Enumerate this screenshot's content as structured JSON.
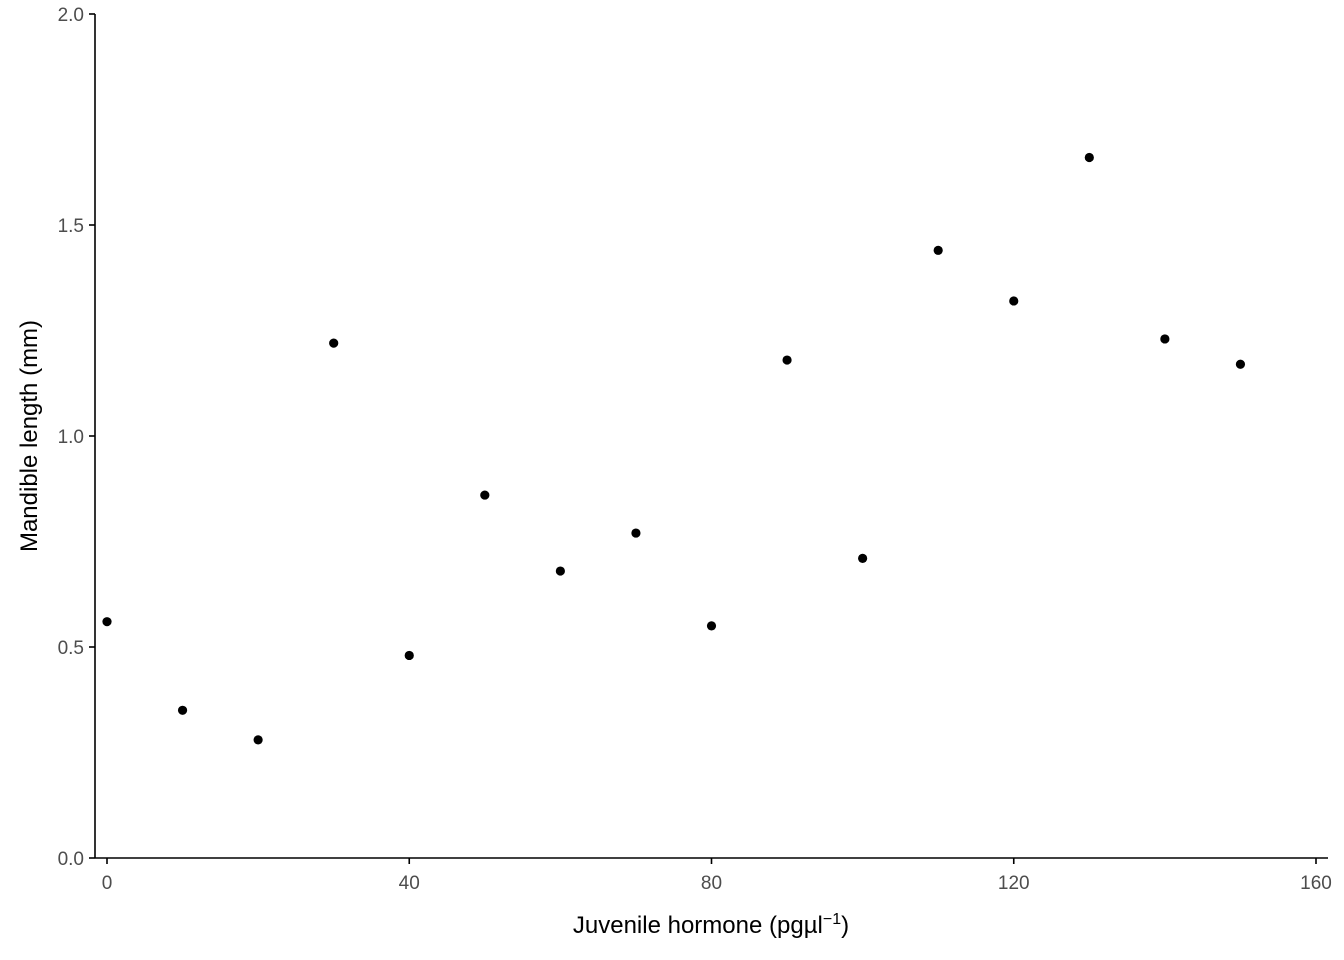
{
  "chart_data": {
    "type": "scatter",
    "title": "",
    "xlabel": "Juvenile hormone (pgµl",
    "xlabel_superscript": "−1",
    "xlabel_close": ")",
    "ylabel": "Mandible length (mm)",
    "xlim": [
      0,
      160
    ],
    "ylim": [
      0,
      2
    ],
    "xticks": [
      0,
      40,
      80,
      120,
      160
    ],
    "xtick_labels": [
      "0",
      "40",
      "80",
      "120",
      "160"
    ],
    "yticks": [
      0,
      0.5,
      1,
      1.5,
      2
    ],
    "ytick_labels": [
      "0.0",
      "0.5",
      "1.0",
      "1.5",
      "2.0"
    ],
    "grid": false,
    "point_color": "#000000",
    "series": [
      {
        "x": [
          0,
          10,
          20,
          30,
          40,
          50,
          60,
          70,
          80,
          90,
          100,
          110,
          120,
          130,
          140,
          150
        ],
        "y": [
          0.56,
          0.35,
          0.28,
          1.22,
          0.48,
          0.86,
          0.68,
          0.77,
          0.55,
          1.18,
          0.71,
          1.44,
          1.32,
          1.66,
          1.23,
          1.17
        ]
      }
    ]
  }
}
